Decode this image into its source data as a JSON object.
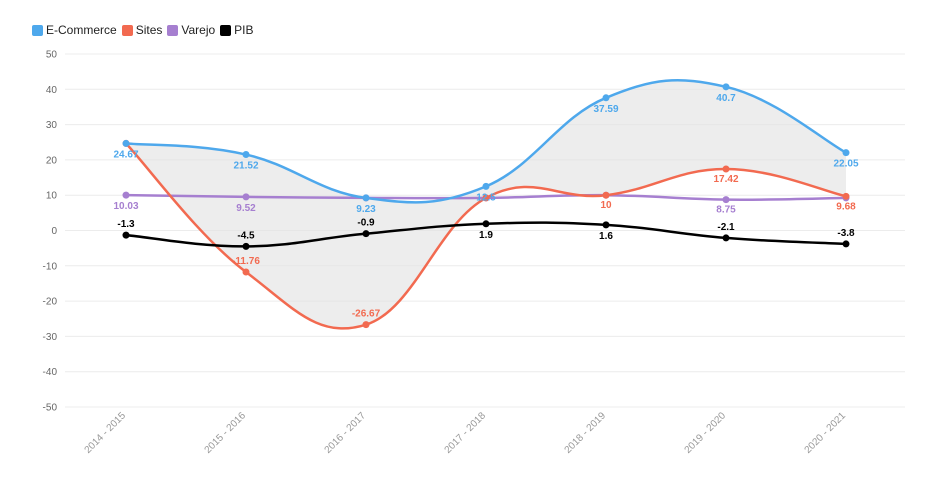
{
  "chart_data": {
    "type": "line",
    "categories": [
      "2014 - 2015",
      "2015 - 2016",
      "2016 - 2017",
      "2017 - 2018",
      "2018 - 2019",
      "2019 - 2020",
      "2020 - 2021"
    ],
    "ylim": [
      -50,
      50
    ],
    "yticks": [
      50,
      40,
      30,
      20,
      10,
      0,
      -10,
      -20,
      -30,
      -40,
      -50
    ],
    "grid": true,
    "legend_position": "top-left",
    "shaded_band_between": [
      "E-Commerce",
      "Sites"
    ],
    "series": [
      {
        "name": "E-Commerce",
        "color": "#4ea8ec",
        "values": [
          24.67,
          21.52,
          9.23,
          12.5,
          37.59,
          40.7,
          22.05
        ],
        "labels": [
          "24.67",
          "21.52",
          "9.23",
          "12.5",
          "37.59",
          "40.7",
          "22.05"
        ]
      },
      {
        "name": "Sites",
        "color": "#f26a50",
        "values": [
          24.67,
          -11.76,
          -26.67,
          9.23,
          10,
          17.42,
          9.68
        ],
        "labels": [
          "",
          "-11.76",
          "-26.67",
          "",
          "10",
          "17.42",
          "9.68"
        ]
      },
      {
        "name": "Varejo",
        "color": "#a67fd0",
        "values": [
          10.03,
          9.52,
          9.23,
          9.23,
          10,
          8.75,
          9.23
        ],
        "labels": [
          "10.03",
          "9.52",
          "",
          "",
          "",
          "8.75",
          ""
        ]
      },
      {
        "name": "PIB",
        "color": "#000000",
        "values": [
          -1.3,
          -4.5,
          -0.9,
          1.9,
          1.6,
          -2.1,
          -3.8
        ],
        "labels": [
          "-1.3",
          "-4.5",
          "-0.9",
          "1.9",
          "1.6",
          "-2.1",
          "-3.8"
        ]
      }
    ]
  }
}
